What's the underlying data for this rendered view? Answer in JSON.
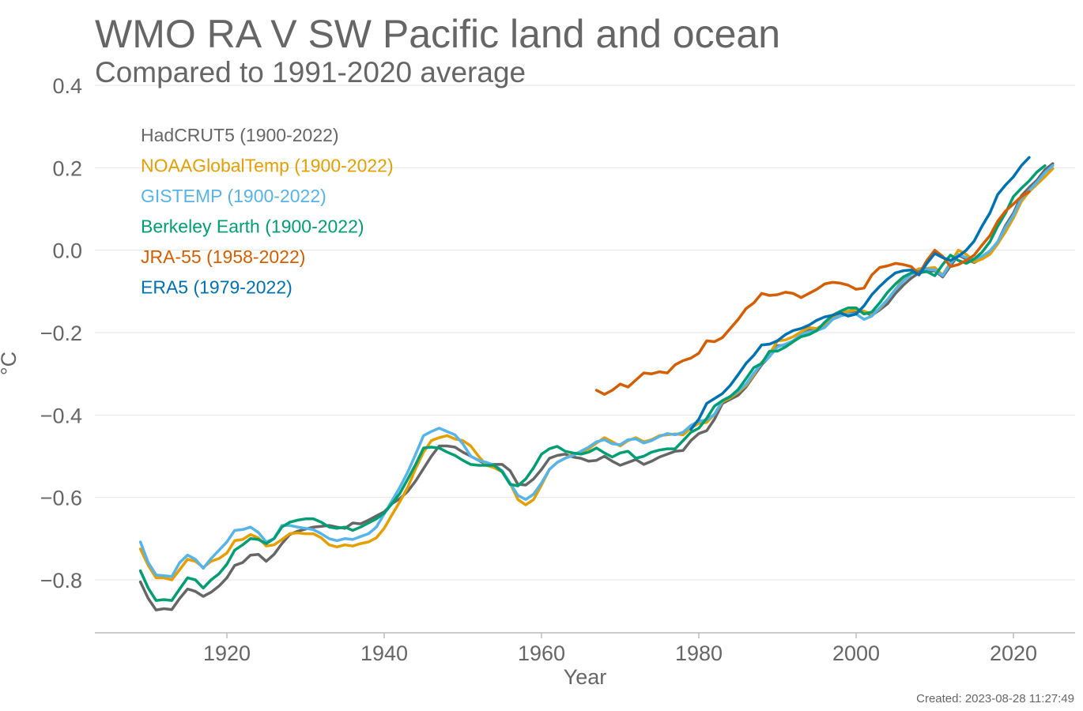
{
  "chart_data": {
    "type": "line",
    "title": "WMO RA V SW Pacific land and ocean",
    "subtitle": "Compared to 1991-2020 average",
    "xlabel": "Year",
    "ylabel": "°C",
    "xlim": [
      1903,
      2028
    ],
    "ylim": [
      -0.93,
      0.4
    ],
    "xticks": [
      1920,
      1940,
      1960,
      1980,
      2000,
      2020
    ],
    "yticks": [
      -0.8,
      -0.6,
      -0.4,
      -0.2,
      0.0,
      0.2,
      0.4
    ],
    "ytick_labels": [
      "−0.8",
      "−0.6",
      "−0.4",
      "−0.2",
      "0.0",
      "0.2",
      "0.4"
    ],
    "grid": true,
    "legend_position": "top-left",
    "footer": "Created: 2023-08-28 11:27:49",
    "series": [
      {
        "name": "HadCRUT5 (1900-2022)",
        "color": "#666666",
        "start_year": 1909,
        "values": [
          -0.805,
          -0.845,
          -0.873,
          -0.87,
          -0.872,
          -0.845,
          -0.822,
          -0.828,
          -0.84,
          -0.83,
          -0.815,
          -0.795,
          -0.765,
          -0.758,
          -0.74,
          -0.738,
          -0.755,
          -0.738,
          -0.712,
          -0.69,
          -0.682,
          -0.677,
          -0.672,
          -0.67,
          -0.668,
          -0.672,
          -0.675,
          -0.662,
          -0.664,
          -0.655,
          -0.645,
          -0.635,
          -0.615,
          -0.603,
          -0.585,
          -0.56,
          -0.53,
          -0.5,
          -0.475,
          -0.475,
          -0.478,
          -0.49,
          -0.5,
          -0.51,
          -0.52,
          -0.52,
          -0.52,
          -0.535,
          -0.568,
          -0.57,
          -0.555,
          -0.532,
          -0.505,
          -0.498,
          -0.495,
          -0.502,
          -0.505,
          -0.512,
          -0.51,
          -0.5,
          -0.512,
          -0.522,
          -0.515,
          -0.508,
          -0.52,
          -0.512,
          -0.502,
          -0.495,
          -0.488,
          -0.486,
          -0.462,
          -0.445,
          -0.438,
          -0.41,
          -0.372,
          -0.362,
          -0.352,
          -0.332,
          -0.305,
          -0.278,
          -0.258,
          -0.232,
          -0.23,
          -0.22,
          -0.205,
          -0.195,
          -0.19,
          -0.18,
          -0.168,
          -0.155,
          -0.15,
          -0.148,
          -0.15,
          -0.158,
          -0.145,
          -0.13,
          -0.105,
          -0.085,
          -0.068,
          -0.055,
          -0.052,
          -0.05,
          -0.065,
          -0.038,
          -0.012,
          -0.022,
          -0.03,
          -0.02,
          -0.005,
          0.02,
          0.06,
          0.09,
          0.132,
          0.152,
          0.17,
          0.195,
          0.21
        ]
      },
      {
        "name": "NOAAGlobalTemp (1900-2022)",
        "color": "#E69F00",
        "start_year": 1909,
        "values": [
          -0.725,
          -0.765,
          -0.795,
          -0.795,
          -0.8,
          -0.775,
          -0.75,
          -0.755,
          -0.77,
          -0.755,
          -0.748,
          -0.735,
          -0.705,
          -0.702,
          -0.69,
          -0.698,
          -0.718,
          -0.715,
          -0.702,
          -0.688,
          -0.686,
          -0.688,
          -0.688,
          -0.698,
          -0.715,
          -0.72,
          -0.715,
          -0.718,
          -0.712,
          -0.708,
          -0.698,
          -0.675,
          -0.642,
          -0.61,
          -0.575,
          -0.53,
          -0.49,
          -0.462,
          -0.455,
          -0.45,
          -0.458,
          -0.462,
          -0.475,
          -0.5,
          -0.522,
          -0.528,
          -0.538,
          -0.565,
          -0.605,
          -0.618,
          -0.605,
          -0.57,
          -0.532,
          -0.515,
          -0.505,
          -0.495,
          -0.49,
          -0.482,
          -0.468,
          -0.455,
          -0.465,
          -0.475,
          -0.462,
          -0.455,
          -0.465,
          -0.46,
          -0.45,
          -0.448,
          -0.446,
          -0.448,
          -0.432,
          -0.42,
          -0.418,
          -0.398,
          -0.368,
          -0.358,
          -0.345,
          -0.328,
          -0.302,
          -0.272,
          -0.252,
          -0.22,
          -0.218,
          -0.21,
          -0.198,
          -0.188,
          -0.19,
          -0.182,
          -0.165,
          -0.152,
          -0.148,
          -0.145,
          -0.148,
          -0.155,
          -0.142,
          -0.12,
          -0.095,
          -0.07,
          -0.055,
          -0.045,
          -0.044,
          -0.042,
          -0.06,
          -0.03,
          0.0,
          -0.01,
          -0.028,
          -0.022,
          -0.01,
          0.015,
          0.045,
          0.078,
          0.118,
          0.142,
          0.16,
          0.178,
          0.198
        ]
      },
      {
        "name": "GISTEMP (1900-2022)",
        "color": "#56B4E9",
        "start_year": 1909,
        "values": [
          -0.708,
          -0.758,
          -0.788,
          -0.79,
          -0.792,
          -0.758,
          -0.74,
          -0.75,
          -0.772,
          -0.748,
          -0.728,
          -0.708,
          -0.68,
          -0.678,
          -0.672,
          -0.685,
          -0.708,
          -0.7,
          -0.668,
          -0.668,
          -0.672,
          -0.675,
          -0.678,
          -0.688,
          -0.7,
          -0.705,
          -0.7,
          -0.702,
          -0.695,
          -0.688,
          -0.672,
          -0.64,
          -0.608,
          -0.575,
          -0.538,
          -0.495,
          -0.45,
          -0.44,
          -0.432,
          -0.44,
          -0.448,
          -0.47,
          -0.5,
          -0.51,
          -0.515,
          -0.522,
          -0.535,
          -0.565,
          -0.595,
          -0.605,
          -0.592,
          -0.565,
          -0.532,
          -0.515,
          -0.505,
          -0.498,
          -0.488,
          -0.478,
          -0.465,
          -0.46,
          -0.47,
          -0.472,
          -0.46,
          -0.458,
          -0.468,
          -0.462,
          -0.452,
          -0.445,
          -0.448,
          -0.442,
          -0.425,
          -0.415,
          -0.412,
          -0.398,
          -0.365,
          -0.355,
          -0.342,
          -0.325,
          -0.298,
          -0.275,
          -0.258,
          -0.235,
          -0.228,
          -0.22,
          -0.205,
          -0.198,
          -0.195,
          -0.188,
          -0.168,
          -0.16,
          -0.155,
          -0.155,
          -0.168,
          -0.16,
          -0.14,
          -0.12,
          -0.095,
          -0.075,
          -0.058,
          -0.05,
          -0.046,
          -0.048,
          -0.062,
          -0.032,
          -0.01,
          -0.018,
          -0.022,
          -0.015,
          -0.002,
          0.02,
          0.055,
          0.085,
          0.125,
          0.145,
          0.165,
          0.188,
          0.205
        ]
      },
      {
        "name": "Berkeley Earth (1900-2022)",
        "color": "#009E73",
        "start_year": 1909,
        "values": [
          -0.778,
          -0.82,
          -0.85,
          -0.848,
          -0.85,
          -0.822,
          -0.795,
          -0.8,
          -0.82,
          -0.8,
          -0.785,
          -0.762,
          -0.728,
          -0.715,
          -0.7,
          -0.702,
          -0.712,
          -0.7,
          -0.672,
          -0.66,
          -0.655,
          -0.652,
          -0.652,
          -0.66,
          -0.672,
          -0.675,
          -0.672,
          -0.68,
          -0.672,
          -0.662,
          -0.652,
          -0.638,
          -0.615,
          -0.59,
          -0.555,
          -0.52,
          -0.48,
          -0.478,
          -0.48,
          -0.49,
          -0.498,
          -0.51,
          -0.52,
          -0.522,
          -0.522,
          -0.522,
          -0.538,
          -0.568,
          -0.572,
          -0.555,
          -0.528,
          -0.495,
          -0.482,
          -0.476,
          -0.488,
          -0.492,
          -0.495,
          -0.49,
          -0.48,
          -0.492,
          -0.502,
          -0.492,
          -0.488,
          -0.505,
          -0.5,
          -0.49,
          -0.485,
          -0.482,
          -0.482,
          -0.462,
          -0.442,
          -0.432,
          -0.408,
          -0.378,
          -0.365,
          -0.355,
          -0.338,
          -0.312,
          -0.285,
          -0.275,
          -0.245,
          -0.245,
          -0.235,
          -0.222,
          -0.21,
          -0.205,
          -0.195,
          -0.175,
          -0.158,
          -0.148,
          -0.14,
          -0.14,
          -0.155,
          -0.15,
          -0.128,
          -0.102,
          -0.082,
          -0.065,
          -0.055,
          -0.052,
          -0.052,
          -0.062,
          -0.035,
          -0.012,
          -0.025,
          -0.032,
          -0.022,
          -0.005,
          0.02,
          0.058,
          0.09,
          0.13,
          0.15,
          0.168,
          0.19,
          0.205
        ]
      },
      {
        "name": "JRA-55 (1958-2022)",
        "color": "#D55E00",
        "start_year": 1967,
        "values": [
          -0.34,
          -0.35,
          -0.34,
          -0.325,
          -0.332,
          -0.315,
          -0.298,
          -0.3,
          -0.295,
          -0.298,
          -0.278,
          -0.268,
          -0.262,
          -0.25,
          -0.22,
          -0.222,
          -0.212,
          -0.19,
          -0.168,
          -0.142,
          -0.128,
          -0.105,
          -0.11,
          -0.108,
          -0.102,
          -0.105,
          -0.115,
          -0.105,
          -0.095,
          -0.082,
          -0.078,
          -0.08,
          -0.085,
          -0.095,
          -0.092,
          -0.06,
          -0.042,
          -0.038,
          -0.032,
          -0.035,
          -0.04,
          -0.058,
          -0.025,
          0.0,
          -0.015,
          -0.04,
          -0.035,
          -0.025,
          -0.012,
          0.012,
          0.035,
          0.07,
          0.095,
          0.112,
          0.13,
          0.142
        ]
      },
      {
        "name": "ERA5 (1979-2022)",
        "color": "#0072B2",
        "start_year": 1979,
        "values": [
          -0.435,
          -0.41,
          -0.372,
          -0.36,
          -0.348,
          -0.328,
          -0.302,
          -0.275,
          -0.255,
          -0.23,
          -0.228,
          -0.22,
          -0.205,
          -0.195,
          -0.19,
          -0.182,
          -0.17,
          -0.162,
          -0.158,
          -0.152,
          -0.16,
          -0.155,
          -0.135,
          -0.108,
          -0.088,
          -0.07,
          -0.055,
          -0.05,
          -0.048,
          -0.06,
          -0.032,
          -0.008,
          -0.018,
          -0.025,
          -0.015,
          0.0,
          0.022,
          0.058,
          0.09,
          0.135,
          0.158,
          0.178,
          0.205,
          0.225
        ]
      }
    ]
  }
}
